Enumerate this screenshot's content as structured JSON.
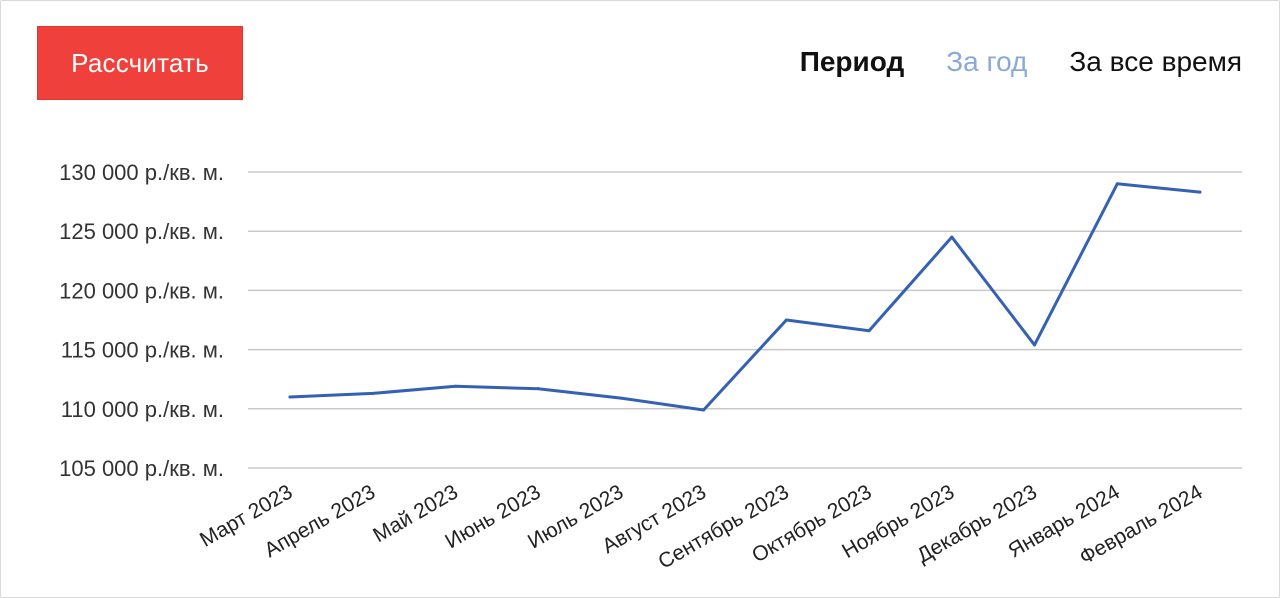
{
  "button": {
    "calculate_label": "Рассчитать"
  },
  "period": {
    "label": "Период",
    "options": [
      {
        "label": "За год",
        "selected": true
      },
      {
        "label": "За все время",
        "selected": false
      }
    ]
  },
  "colors": {
    "button_bg": "#f0403c",
    "line": "#3461b3",
    "selected_option": "#8aa9d6",
    "grid": "#c8c8c8"
  },
  "chart_data": {
    "type": "line",
    "categories": [
      "Март 2023",
      "Апрель 2023",
      "Май 2023",
      "Июнь 2023",
      "Июль 2023",
      "Август 2023",
      "Сентябрь 2023",
      "Октябрь 2023",
      "Ноябрь 2023",
      "Декабрь 2023",
      "Январь 2024",
      "Февраль 2024"
    ],
    "series": [
      {
        "values": [
          111000,
          111300,
          111900,
          111700,
          110900,
          109900,
          117500,
          116600,
          124500,
          115400,
          129000,
          128300
        ]
      }
    ],
    "y_ticks": [
      105000,
      110000,
      115000,
      120000,
      125000,
      130000
    ],
    "y_tick_labels": [
      "105 000 р./кв. м.",
      "110 000 р./кв. м.",
      "115 000 р./кв. м.",
      "120 000 р./кв. м.",
      "125 000 р./кв. м.",
      "130 000 р./кв. м."
    ],
    "ylim": [
      105000,
      130000
    ],
    "grid": true,
    "legend": "none",
    "title": "",
    "xlabel": "",
    "ylabel": ""
  }
}
